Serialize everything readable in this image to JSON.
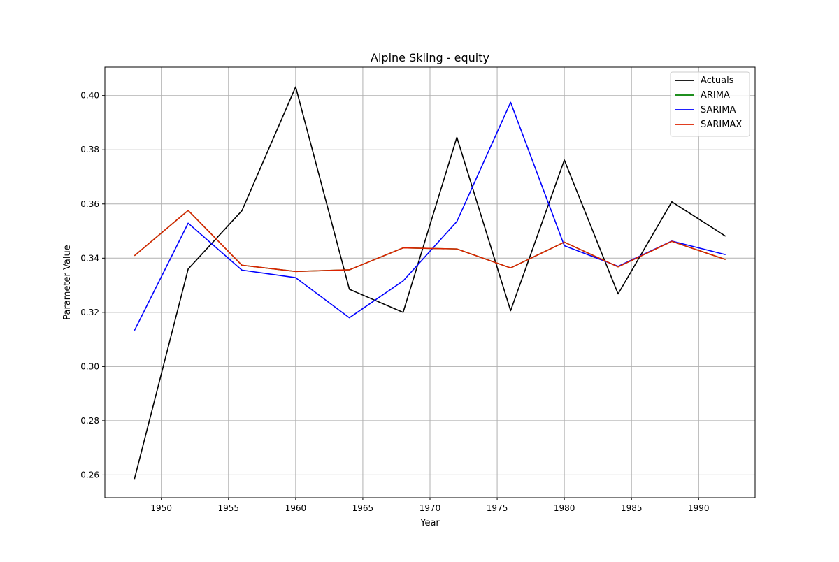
{
  "chart_data": {
    "type": "line",
    "title": "Alpine Skiing - equity",
    "xlabel": "Year",
    "ylabel": "Parameter Value",
    "xlim": [
      1945.8,
      1994.2
    ],
    "ylim": [
      0.2516,
      0.4105
    ],
    "xticks": [
      1950,
      1955,
      1960,
      1965,
      1970,
      1975,
      1980,
      1985,
      1990
    ],
    "yticks": [
      0.26,
      0.28,
      0.3,
      0.32,
      0.34,
      0.36,
      0.38,
      0.4
    ],
    "grid": true,
    "legend_position": "top-right",
    "x": [
      1948,
      1952,
      1956,
      1960,
      1964,
      1968,
      1972,
      1976,
      1980,
      1984,
      1988,
      1992
    ],
    "series": [
      {
        "name": "Actuals",
        "color": "#000000",
        "values": [
          0.2585,
          0.336,
          0.3575,
          0.4032,
          0.3285,
          0.32,
          0.3846,
          0.3206,
          0.3762,
          0.3268,
          0.3608,
          0.3481
        ]
      },
      {
        "name": "ARIMA",
        "color": "#008000",
        "values": [
          0.3409,
          0.3576,
          0.3374,
          0.3351,
          0.3357,
          0.3438,
          0.3434,
          0.3364,
          0.3459,
          0.3368,
          0.3462,
          0.3395
        ]
      },
      {
        "name": "SARIMA",
        "color": "#0000ff",
        "values": [
          0.3133,
          0.3529,
          0.3356,
          0.3328,
          0.318,
          0.3316,
          0.3535,
          0.3975,
          0.3446,
          0.337,
          0.3463,
          0.3413
        ]
      },
      {
        "name": "SARIMAX",
        "color": "#dd2200",
        "values": [
          0.3409,
          0.3576,
          0.3374,
          0.3351,
          0.3357,
          0.3438,
          0.3434,
          0.3364,
          0.3459,
          0.3368,
          0.3462,
          0.3395
        ]
      }
    ]
  }
}
